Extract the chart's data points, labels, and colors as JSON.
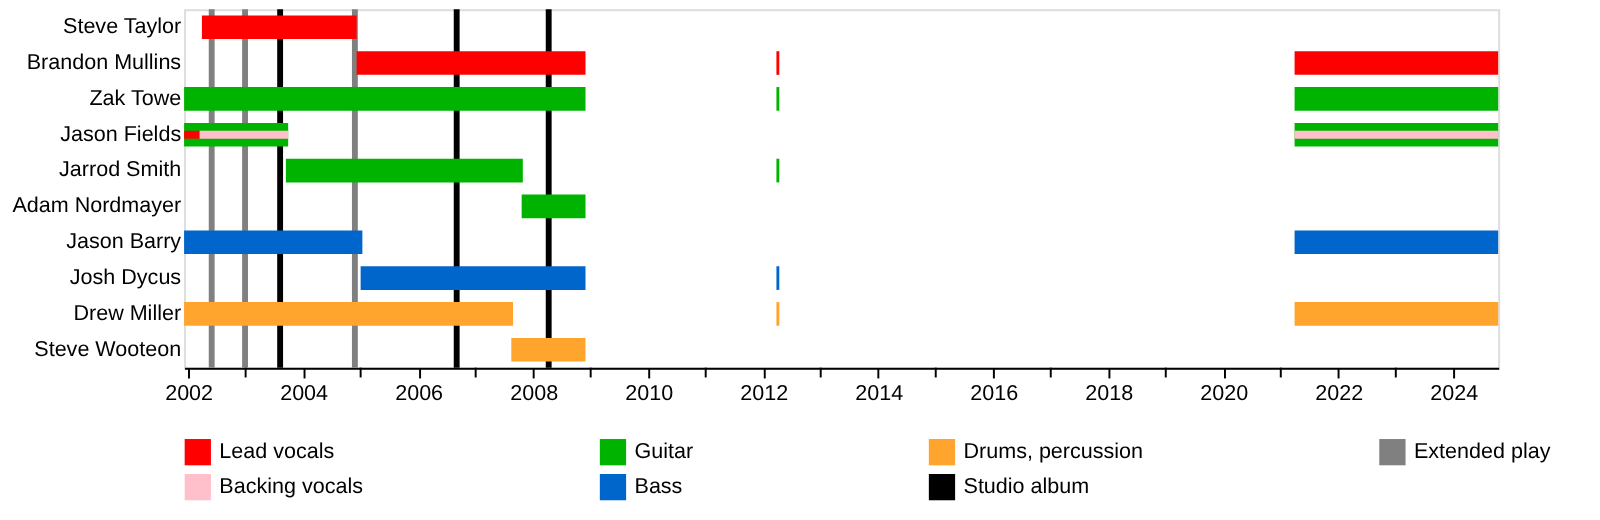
{
  "chart_data": {
    "type": "bar",
    "orientation": "horizontal",
    "legend": "bottom",
    "grid": false,
    "categories": [
      "Steve Taylor",
      "Brandon Mullins",
      "Zak Towe",
      "Jason Fields",
      "Jarrod Smith",
      "Adam Nordmayer",
      "Jason Barry",
      "Josh Dycus",
      "Drew Miller",
      "Steve Wooteon"
    ],
    "xlim": [
      2001.93,
      2024.78
    ],
    "xticks": [
      2002,
      {
        "value": 2003,
        "label": null
      },
      2004,
      {
        "value": 2005,
        "label": null
      },
      2006,
      {
        "value": 2007,
        "label": null
      },
      2008,
      {
        "value": 2009,
        "label": null
      },
      2010,
      {
        "value": 2011,
        "label": null
      },
      2012,
      {
        "value": 2013,
        "label": null
      },
      2014,
      {
        "value": 2015,
        "label": null
      },
      2016,
      {
        "value": 2017,
        "label": null
      },
      2018,
      {
        "value": 2019,
        "label": null
      },
      2020,
      {
        "value": 2021,
        "label": null
      },
      2022,
      {
        "value": 2023,
        "label": null
      },
      2024
    ],
    "series": [
      {
        "name": "Lead vocals",
        "color": "#ff0000",
        "base": [
          2002.24,
          2004.93,
          null,
          2001.93,
          null,
          null,
          null,
          null,
          null,
          null
        ],
        "values": [
          2.69,
          3.98,
          null,
          0.27,
          null,
          null,
          null,
          null,
          null,
          null
        ]
      },
      {
        "color": "#ff0000",
        "base": [
          null,
          2012.23,
          null,
          null,
          null,
          null,
          null,
          null,
          null,
          null
        ],
        "values": [
          null,
          0.05,
          null,
          null,
          null,
          null,
          null,
          null,
          null,
          null
        ]
      },
      {
        "color": "#ff0000",
        "base": [
          null,
          2021.24,
          null,
          null,
          null,
          null,
          null,
          null,
          null,
          null
        ],
        "values": [
          null,
          3.54,
          null,
          null,
          null,
          null,
          null,
          null,
          null,
          null
        ]
      },
      {
        "name": "Backing vocals",
        "color": "#ffc0cb",
        "base": [
          null,
          null,
          null,
          2002.2,
          null,
          null,
          null,
          null,
          null,
          null
        ],
        "values": [
          null,
          null,
          null,
          1.54,
          null,
          null,
          null,
          null,
          null,
          null
        ]
      },
      {
        "color": "#ffc0cb",
        "base": [
          null,
          null,
          null,
          2021.24,
          null,
          null,
          null,
          null,
          null,
          null
        ],
        "values": [
          null,
          null,
          null,
          3.54,
          null,
          null,
          null,
          null,
          null,
          null
        ]
      },
      {
        "name": "Guitar",
        "color": "#00b300",
        "base": [
          null,
          null,
          2001.93,
          2001.93,
          2003.7,
          2007.8,
          null,
          null,
          null,
          null
        ],
        "values": [
          null,
          null,
          6.98,
          1.81,
          4.12,
          1.11,
          null,
          null,
          null,
          null
        ]
      },
      {
        "color": "#00b300",
        "base": [
          null,
          null,
          2012.23,
          null,
          2012.23,
          null,
          null,
          null,
          null,
          null
        ],
        "values": [
          null,
          null,
          0.05,
          null,
          0.05,
          null,
          null,
          null,
          null,
          null
        ]
      },
      {
        "color": "#00b300",
        "base": [
          null,
          null,
          2021.24,
          2021.24,
          null,
          null,
          null,
          null,
          null,
          null
        ],
        "values": [
          null,
          null,
          3.54,
          3.54,
          null,
          null,
          null,
          null,
          null,
          null
        ]
      },
      {
        "name": "Bass",
        "color": "#0066cc",
        "base": [
          null,
          null,
          null,
          null,
          null,
          null,
          2001.93,
          2005.0,
          null,
          null
        ],
        "values": [
          null,
          null,
          null,
          null,
          null,
          null,
          3.1,
          3.91,
          null,
          null
        ]
      },
      {
        "color": "#0066cc",
        "base": [
          null,
          null,
          null,
          null,
          null,
          null,
          null,
          2012.23,
          null,
          null
        ],
        "values": [
          null,
          null,
          null,
          null,
          null,
          null,
          null,
          0.05,
          null,
          null
        ]
      },
      {
        "color": "#0066cc",
        "base": [
          null,
          null,
          null,
          null,
          null,
          null,
          2021.24,
          null,
          null,
          null
        ],
        "values": [
          null,
          null,
          null,
          null,
          null,
          null,
          3.54,
          null,
          null,
          null
        ]
      },
      {
        "name": "Drums, percussion",
        "color": "#ffa42c",
        "base": [
          null,
          null,
          null,
          null,
          null,
          null,
          null,
          null,
          2001.93,
          2007.62
        ],
        "values": [
          null,
          null,
          null,
          null,
          null,
          null,
          null,
          null,
          5.72,
          1.29
        ]
      },
      {
        "color": "#ffa42c",
        "base": [
          null,
          null,
          null,
          null,
          null,
          null,
          null,
          null,
          2012.23,
          null
        ],
        "values": [
          null,
          null,
          null,
          null,
          null,
          null,
          null,
          null,
          0.05,
          null
        ]
      },
      {
        "color": "#ffa42c",
        "base": [
          null,
          null,
          null,
          null,
          null,
          null,
          null,
          null,
          2021.24,
          null
        ],
        "values": [
          null,
          null,
          null,
          null,
          null,
          null,
          null,
          null,
          3.54,
          null
        ]
      }
    ],
    "ref_lines": [
      {
        "axis": "x",
        "value": 2003.6,
        "label": "Studio album",
        "color": "#000000"
      },
      {
        "axis": "x",
        "value": 2006.67,
        "color": "#000000"
      },
      {
        "axis": "x",
        "value": 2008.27,
        "color": "#000000"
      },
      {
        "axis": "x",
        "value": 2002.41,
        "label": "Extended play",
        "color": "#808080"
      },
      {
        "axis": "x",
        "value": 2002.99,
        "color": "#808080"
      },
      {
        "axis": "x",
        "value": 2004.9,
        "color": "#808080"
      }
    ]
  }
}
